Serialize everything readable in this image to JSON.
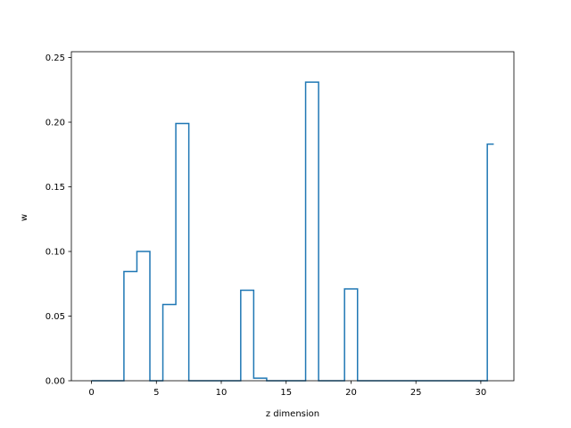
{
  "chart_data": {
    "type": "line",
    "drawstyle": "steps-mid",
    "title": "",
    "xlabel": "z dimension",
    "ylabel": "w",
    "xlim": [
      -1.55,
      32.55
    ],
    "ylim": [
      0,
      0.2545
    ],
    "x_ticks": [
      0,
      5,
      10,
      15,
      20,
      25,
      30
    ],
    "x_tick_labels": [
      "0",
      "5",
      "10",
      "15",
      "20",
      "25",
      "30"
    ],
    "y_ticks": [
      0,
      0.05,
      0.1,
      0.15,
      0.2,
      0.25
    ],
    "y_tick_labels": [
      "0.00",
      "0.05",
      "0.10",
      "0.15",
      "0.20",
      "0.25"
    ],
    "grid": false,
    "series": [
      {
        "color": "#1f77b4",
        "x": [
          0,
          1,
          2,
          3,
          4,
          5,
          6,
          7,
          8,
          9,
          10,
          11,
          12,
          13,
          14,
          15,
          16,
          17,
          18,
          19,
          20,
          21,
          22,
          23,
          24,
          25,
          26,
          27,
          28,
          29,
          30,
          31
        ],
        "values": [
          0,
          0,
          0,
          0.0845,
          0.1,
          0,
          0.059,
          0.199,
          0,
          0,
          0,
          0,
          0.07,
          0.002,
          0,
          0,
          0,
          0.231,
          0,
          0,
          0.071,
          0,
          0,
          0,
          0,
          0,
          0,
          0,
          0,
          0,
          0,
          0.183
        ]
      }
    ]
  }
}
